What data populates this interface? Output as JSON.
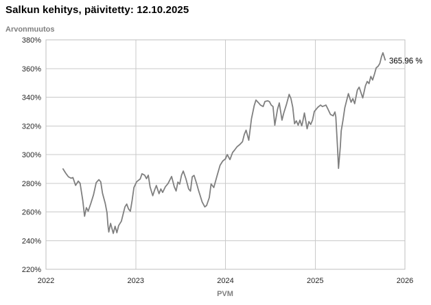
{
  "header": {
    "title": "Salkun kehitys, päivitetty: 12.10.2025"
  },
  "chart_data": {
    "type": "line",
    "title": "Salkun kehitys, päivitetty: 12.10.2025",
    "ylabel": "Arvonmuutos",
    "xlabel": "PVM",
    "xlim": [
      2022,
      2026
    ],
    "ylim": [
      220,
      380
    ],
    "x_ticks": [
      2022,
      2023,
      2024,
      2025,
      2026
    ],
    "x_tick_labels": [
      "2022",
      "2023",
      "2024",
      "2025",
      "2026"
    ],
    "y_ticks": [
      220,
      240,
      260,
      280,
      300,
      320,
      340,
      360,
      380
    ],
    "y_tick_labels": [
      "220%",
      "240%",
      "260%",
      "280%",
      "300%",
      "320%",
      "340%",
      "360%",
      "380%"
    ],
    "grid": true,
    "legend": "none",
    "annotation": "365.96 %",
    "final_value_pct": 365.96,
    "series": [
      {
        "name": "Arvonmuutos",
        "color": "#7f7f7f",
        "points": [
          [
            2022.19,
            290
          ],
          [
            2022.22,
            287
          ],
          [
            2022.25,
            284.5
          ],
          [
            2022.28,
            283.5
          ],
          [
            2022.3,
            284
          ],
          [
            2022.33,
            278.5
          ],
          [
            2022.36,
            281.5
          ],
          [
            2022.38,
            280
          ],
          [
            2022.41,
            268
          ],
          [
            2022.43,
            257
          ],
          [
            2022.45,
            263
          ],
          [
            2022.47,
            260.5
          ],
          [
            2022.5,
            266
          ],
          [
            2022.53,
            272
          ],
          [
            2022.56,
            280.5
          ],
          [
            2022.59,
            282.5
          ],
          [
            2022.61,
            281
          ],
          [
            2022.63,
            273
          ],
          [
            2022.66,
            266
          ],
          [
            2022.68,
            259.5
          ],
          [
            2022.69,
            251
          ],
          [
            2022.7,
            246
          ],
          [
            2022.72,
            252
          ],
          [
            2022.75,
            245
          ],
          [
            2022.77,
            250
          ],
          [
            2022.79,
            245.5
          ],
          [
            2022.81,
            250.5
          ],
          [
            2022.84,
            253.5
          ],
          [
            2022.86,
            258.5
          ],
          [
            2022.88,
            263.5
          ],
          [
            2022.9,
            265.5
          ],
          [
            2022.92,
            262
          ],
          [
            2022.94,
            260.5
          ],
          [
            2022.96,
            268
          ],
          [
            2022.98,
            277
          ],
          [
            2023.01,
            281
          ],
          [
            2023.03,
            282
          ],
          [
            2023.05,
            283
          ],
          [
            2023.07,
            286.6
          ],
          [
            2023.1,
            285.6
          ],
          [
            2023.12,
            283.2
          ],
          [
            2023.14,
            285.6
          ],
          [
            2023.16,
            277.5
          ],
          [
            2023.19,
            271.3
          ],
          [
            2023.21,
            275.2
          ],
          [
            2023.23,
            278.4
          ],
          [
            2023.26,
            272.7
          ],
          [
            2023.28,
            276
          ],
          [
            2023.3,
            273.6
          ],
          [
            2023.33,
            277.5
          ],
          [
            2023.36,
            279.8
          ],
          [
            2023.4,
            284.7
          ],
          [
            2023.43,
            277.5
          ],
          [
            2023.45,
            274.6
          ],
          [
            2023.47,
            280.8
          ],
          [
            2023.49,
            279.4
          ],
          [
            2023.51,
            285.5
          ],
          [
            2023.53,
            288.5
          ],
          [
            2023.56,
            283
          ],
          [
            2023.59,
            276
          ],
          [
            2023.61,
            274.5
          ],
          [
            2023.63,
            284.5
          ],
          [
            2023.65,
            285.5
          ],
          [
            2023.68,
            279.5
          ],
          [
            2023.7,
            275
          ],
          [
            2023.72,
            271
          ],
          [
            2023.74,
            267
          ],
          [
            2023.77,
            263.5
          ],
          [
            2023.79,
            264.5
          ],
          [
            2023.82,
            270
          ],
          [
            2023.84,
            279.5
          ],
          [
            2023.87,
            277
          ],
          [
            2023.91,
            286
          ],
          [
            2023.94,
            292.5
          ],
          [
            2023.97,
            295.5
          ],
          [
            2024.0,
            297
          ],
          [
            2024.02,
            300
          ],
          [
            2024.05,
            296.5
          ],
          [
            2024.08,
            301.5
          ],
          [
            2024.1,
            303
          ],
          [
            2024.13,
            305.5
          ],
          [
            2024.16,
            307
          ],
          [
            2024.19,
            309
          ],
          [
            2024.21,
            314
          ],
          [
            2024.23,
            317
          ],
          [
            2024.26,
            310
          ],
          [
            2024.29,
            325
          ],
          [
            2024.32,
            334
          ],
          [
            2024.34,
            338
          ],
          [
            2024.37,
            336
          ],
          [
            2024.39,
            334.5
          ],
          [
            2024.42,
            333.5
          ],
          [
            2024.44,
            337
          ],
          [
            2024.47,
            337.5
          ],
          [
            2024.49,
            336.9
          ],
          [
            2024.51,
            334.5
          ],
          [
            2024.53,
            333.5
          ],
          [
            2024.55,
            320.5
          ],
          [
            2024.58,
            331.5
          ],
          [
            2024.6,
            336
          ],
          [
            2024.63,
            324
          ],
          [
            2024.65,
            329
          ],
          [
            2024.68,
            335
          ],
          [
            2024.71,
            342
          ],
          [
            2024.73,
            339
          ],
          [
            2024.75,
            333
          ],
          [
            2024.77,
            321.5
          ],
          [
            2024.79,
            323.5
          ],
          [
            2024.81,
            320.5
          ],
          [
            2024.83,
            324
          ],
          [
            2024.85,
            320
          ],
          [
            2024.86,
            322.5
          ],
          [
            2024.88,
            329
          ],
          [
            2024.91,
            318
          ],
          [
            2024.93,
            323
          ],
          [
            2024.95,
            321
          ],
          [
            2024.97,
            324
          ],
          [
            2024.99,
            330
          ],
          [
            2025.01,
            331.5
          ],
          [
            2025.03,
            333
          ],
          [
            2025.06,
            334.5
          ],
          [
            2025.08,
            333.5
          ],
          [
            2025.1,
            334
          ],
          [
            2025.12,
            334.5
          ],
          [
            2025.14,
            332
          ],
          [
            2025.17,
            328
          ],
          [
            2025.2,
            327
          ],
          [
            2025.22,
            329.7
          ],
          [
            2025.23,
            326.3
          ],
          [
            2025.24,
            315
          ],
          [
            2025.25,
            303.7
          ],
          [
            2025.26,
            290.4
          ],
          [
            2025.28,
            305.5
          ],
          [
            2025.29,
            316.5
          ],
          [
            2025.31,
            324
          ],
          [
            2025.33,
            332.6
          ],
          [
            2025.37,
            342.5
          ],
          [
            2025.4,
            336.5
          ],
          [
            2025.42,
            339
          ],
          [
            2025.44,
            335.5
          ],
          [
            2025.47,
            345
          ],
          [
            2025.49,
            347
          ],
          [
            2025.53,
            339.5
          ],
          [
            2025.56,
            348
          ],
          [
            2025.58,
            351
          ],
          [
            2025.6,
            349.5
          ],
          [
            2025.62,
            354.5
          ],
          [
            2025.64,
            352
          ],
          [
            2025.66,
            356
          ],
          [
            2025.68,
            360.5
          ],
          [
            2025.7,
            361.5
          ],
          [
            2025.72,
            363.5
          ],
          [
            2025.74,
            368.5
          ],
          [
            2025.755,
            371
          ],
          [
            2025.78,
            365.96
          ]
        ]
      }
    ]
  },
  "colors": {
    "line": "#7f7f7f",
    "gridline": "#c9c9c9",
    "frame": "#bfbfbf",
    "title": "#000000",
    "axis_title": "#7f7f7f",
    "tick_label": "#262626",
    "background": "#ffffff"
  }
}
